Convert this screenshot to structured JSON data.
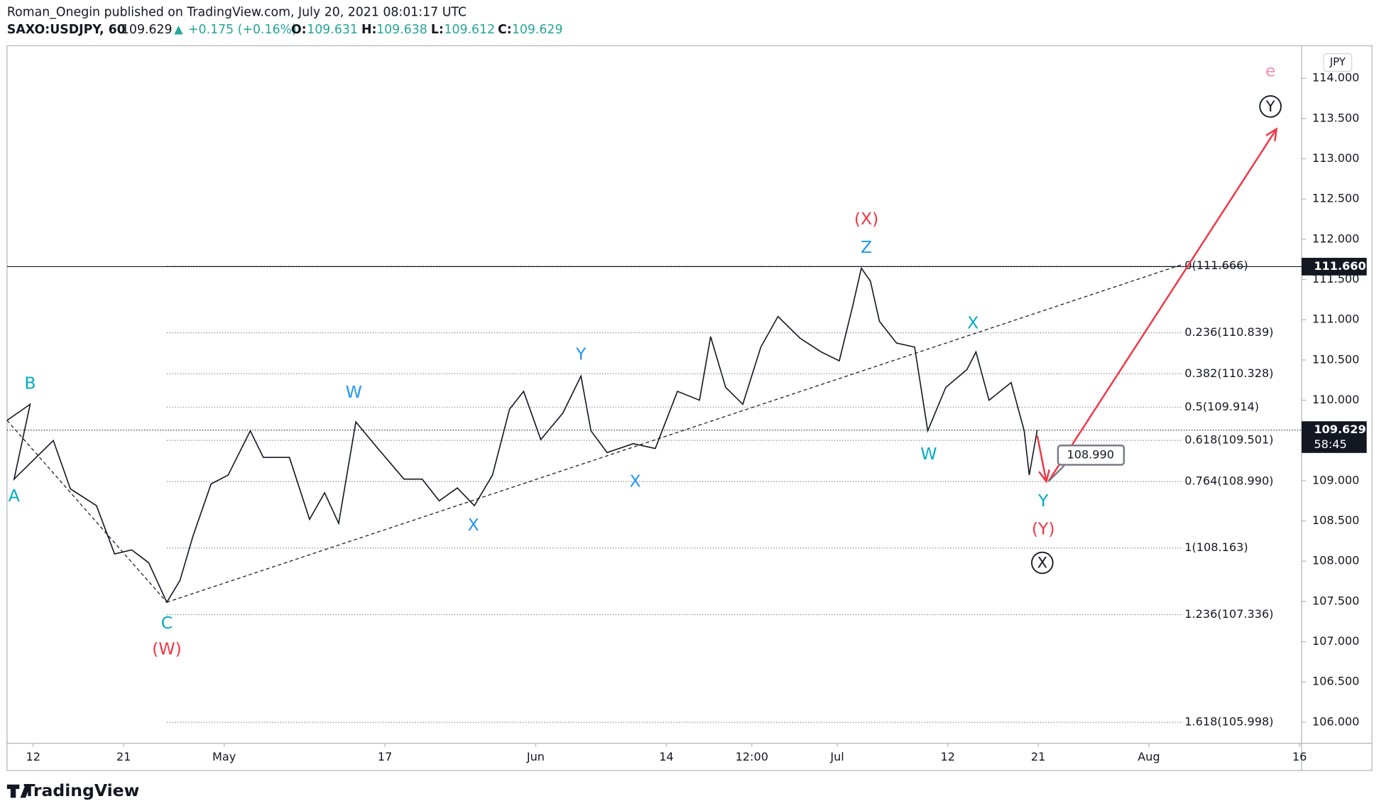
{
  "header": {
    "publisher": "Roman_Onegin published on TradingView.com, July 20, 2021 08:01:17 UTC",
    "symbol": "SAXO:USDJPY, 60",
    "last": "109.629",
    "arrow": "▲",
    "change": "+0.175 (+0.16%)",
    "o_label": "O:",
    "o": "109.631",
    "h_label": "H:",
    "h": "109.638",
    "l_label": "L:",
    "l": "109.612",
    "c_label": "C:",
    "c": "109.629"
  },
  "footer": {
    "brand": "TradingView"
  },
  "chart_data": {
    "type": "line",
    "currency": "JPY",
    "x": [
      99.4,
      101.7,
      100.1,
      104.0,
      105.7,
      108.3,
      110.1,
      111.8,
      113.5,
      115.3,
      116.6,
      117.9,
      119.7,
      121.4,
      123.6,
      124.9,
      127.5,
      129.5,
      131.0,
      132.4,
      134.1,
      136.3,
      138.9,
      140.7,
      142.4,
      144.2,
      145.9,
      147.7,
      149.4,
      150.8,
      152.5,
      154.7,
      156.5,
      157.5,
      159.1,
      161.7,
      163.9,
      166.1,
      168.3,
      169.4,
      170.9,
      172.6,
      174.4,
      176.1,
      178.3,
      180.4,
      182.2,
      183.5,
      184.4,
      185.3,
      186.2,
      187.9,
      189.7,
      191.0,
      192.8,
      194.9,
      195.8,
      197.1,
      199.3,
      200.6,
      201.1,
      201.9
    ],
    "series": [
      {
        "name": "SAXO:USDJPY",
        "color": "#131722",
        "values": [
          109.75,
          109.95,
          109.02,
          109.5,
          108.9,
          108.69,
          108.09,
          108.14,
          107.98,
          107.49,
          107.76,
          108.31,
          108.96,
          109.07,
          109.62,
          109.29,
          109.29,
          108.52,
          108.85,
          108.47,
          109.73,
          109.4,
          109.02,
          109.02,
          108.75,
          108.91,
          108.69,
          109.07,
          109.89,
          110.11,
          109.51,
          109.84,
          110.3,
          109.62,
          109.35,
          109.46,
          109.4,
          110.11,
          110.0,
          110.79,
          110.16,
          109.95,
          110.66,
          111.04,
          110.77,
          110.6,
          110.49,
          111.15,
          111.64,
          111.48,
          110.98,
          110.71,
          110.66,
          109.62,
          110.16,
          110.38,
          110.6,
          110.0,
          110.22,
          109.62,
          109.07,
          109.629
        ]
      }
    ],
    "xlim": [
      99.4,
      228.2
    ],
    "xticks": [
      {
        "value": 102,
        "label": "12"
      },
      {
        "value": 111,
        "label": "21"
      },
      {
        "value": 121,
        "label": "May"
      },
      {
        "value": 137,
        "label": "17"
      },
      {
        "value": 152,
        "label": "Jun"
      },
      {
        "value": 165,
        "label": "14"
      },
      {
        "value": 173.5,
        "label": "12:00"
      },
      {
        "value": 182,
        "label": "Jul"
      },
      {
        "value": 193,
        "label": "12"
      },
      {
        "value": 202,
        "label": "21"
      },
      {
        "value": 213,
        "label": "Aug"
      },
      {
        "value": 228,
        "label": "16"
      }
    ],
    "ylim": [
      105.738,
      114.404
    ],
    "yticks": [
      {
        "value": 106,
        "label": "106.000"
      },
      {
        "value": 106.5,
        "label": "106.500"
      },
      {
        "value": 107,
        "label": "107.000"
      },
      {
        "value": 107.5,
        "label": "107.500"
      },
      {
        "value": 108,
        "label": "108.000"
      },
      {
        "value": 108.5,
        "label": "108.500"
      },
      {
        "value": 109,
        "label": "109.000"
      },
      {
        "value": 109.5,
        "label": "109.500"
      },
      {
        "value": 110,
        "label": "110.000"
      },
      {
        "value": 110.5,
        "label": "110.500"
      },
      {
        "value": 111,
        "label": "111.000"
      },
      {
        "value": 111.5,
        "label": "111.500"
      },
      {
        "value": 112,
        "label": "112.000"
      },
      {
        "value": 112.5,
        "label": "112.500"
      },
      {
        "value": 113,
        "label": "113.000"
      },
      {
        "value": 113.5,
        "label": "113.500"
      },
      {
        "value": 114,
        "label": "114.000"
      }
    ],
    "fib_start": 115.3,
    "fib_levels": [
      {
        "label": "0(111.666)",
        "value": 111.666
      },
      {
        "label": "0.236(110.839)",
        "value": 110.839
      },
      {
        "label": "0.382(110.328)",
        "value": 110.328
      },
      {
        "label": "0.5(109.914)",
        "value": 109.914
      },
      {
        "label": "0.618(109.501)",
        "value": 109.501
      },
      {
        "label": "0.764(108.990)",
        "value": 108.99
      },
      {
        "label": "1(108.163)",
        "value": 108.163
      },
      {
        "label": "1.236(107.336)",
        "value": 107.336
      },
      {
        "label": "1.618(105.998)",
        "value": 105.998
      }
    ],
    "trendlines": [
      {
        "color": "#131722",
        "x": [
          99.4,
          115.3
        ],
        "y": [
          109.75,
          107.49
        ]
      },
      {
        "color": "#131722",
        "x": [
          115.3,
          216.4
        ],
        "y": [
          107.49,
          111.69
        ]
      }
    ],
    "arrows": [
      {
        "color": "#f23645",
        "x": [
          201.9,
          202.8
        ],
        "y": [
          109.56,
          108.99
        ]
      },
      {
        "color": "#f23645",
        "x": [
          203.0,
          225.7
        ],
        "y": [
          108.99,
          113.37
        ]
      }
    ],
    "wave_labels": [
      {
        "text": "B",
        "x": 101.7,
        "y": 110.2,
        "color": "#00acc1"
      },
      {
        "text": "A",
        "x": 100.1,
        "y": 108.8,
        "color": "#00acc1"
      },
      {
        "text": "C",
        "x": 115.3,
        "y": 107.22,
        "color": "#00acc1"
      },
      {
        "text": "(W)",
        "x": 115.3,
        "y": 106.9,
        "color": "#f23645"
      },
      {
        "text": "W",
        "x": 133.9,
        "y": 110.09,
        "color": "#2196f3"
      },
      {
        "text": "X",
        "x": 145.8,
        "y": 108.44,
        "color": "#2196f3"
      },
      {
        "text": "Y",
        "x": 156.5,
        "y": 110.56,
        "color": "#2196f3"
      },
      {
        "text": "X",
        "x": 161.9,
        "y": 108.98,
        "color": "#2196f3"
      },
      {
        "text": "(X)",
        "x": 184.9,
        "y": 112.24,
        "color": "#f23645"
      },
      {
        "text": "Z",
        "x": 184.9,
        "y": 111.89,
        "color": "#2196f3"
      },
      {
        "text": "X",
        "x": 195.5,
        "y": 110.95,
        "color": "#00acc1"
      },
      {
        "text": "W",
        "x": 191.1,
        "y": 109.32,
        "color": "#00acc1"
      },
      {
        "text": "Y",
        "x": 202.5,
        "y": 108.74,
        "color": "#00acc1"
      },
      {
        "text": "(Y)",
        "x": 202.5,
        "y": 108.39,
        "color": "#f23645"
      },
      {
        "text": "e",
        "x": 225.1,
        "y": 114.08,
        "color": "#f48fb1"
      }
    ],
    "circled_labels": [
      {
        "text": "X",
        "x": 202.4,
        "y": 107.98
      },
      {
        "text": "Y",
        "x": 225.1,
        "y": 113.65
      }
    ],
    "level_line": {
      "value": 111.66,
      "label": "111.660"
    },
    "last_price": {
      "value": 109.629,
      "label": "109.629",
      "countdown": "58:45"
    },
    "callout": {
      "x": 203.0,
      "value": 108.99,
      "label": "108.990"
    }
  }
}
